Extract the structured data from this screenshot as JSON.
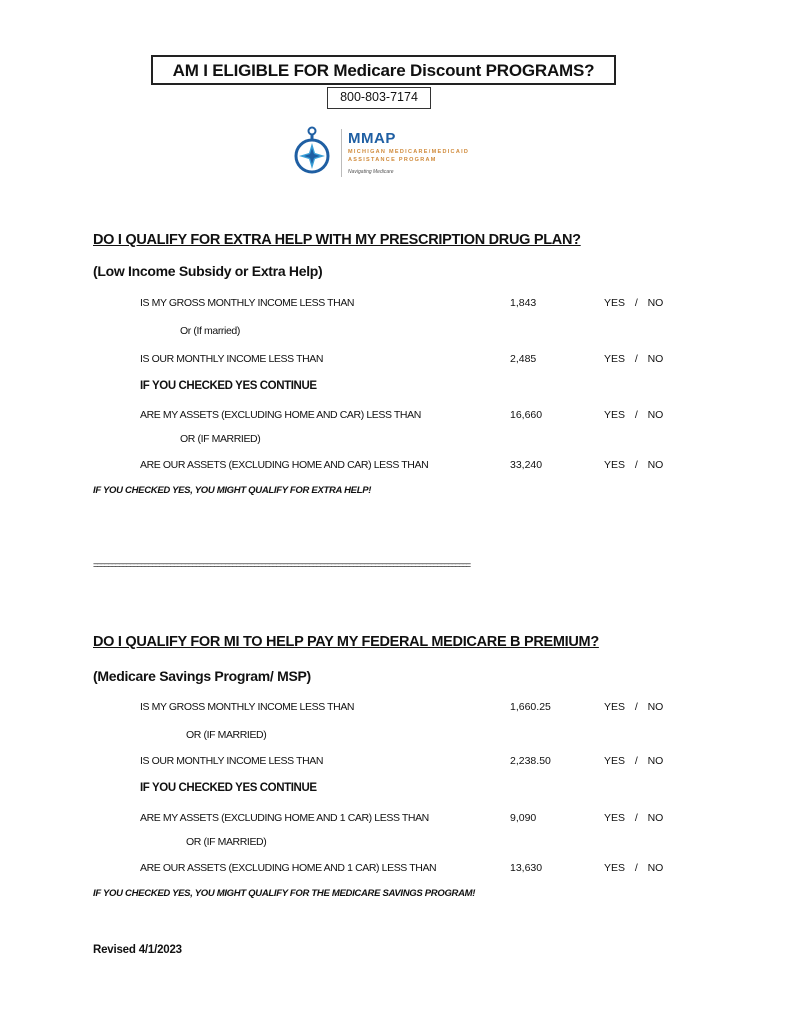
{
  "header": {
    "title": "AM I ELIGIBLE FOR Medicare Discount PROGRAMS?",
    "phone": "800-803-7174"
  },
  "logo": {
    "name": "MMAP",
    "subtitle_line1": "MICHIGAN MEDICARE/MEDICAID",
    "subtitle_line2": "ASSISTANCE PROGRAM",
    "tagline": "Navigating Medicare",
    "icon": "compass-icon",
    "colors": {
      "blue": "#1f5fa3",
      "orange": "#d08a3a",
      "light_blue": "#3aa0d8"
    }
  },
  "section1": {
    "heading": "DO I QUALIFY FOR EXTRA HELP WITH MY PRESCRIPTION DRUG PLAN?",
    "subheading": "(Low Income Subsidy or Extra Help)",
    "rows": [
      {
        "label": "IS MY GROSS MONTHLY INCOME LESS THAN",
        "value": "1,843",
        "answer": "YES  /  NO"
      },
      {
        "label": "Or (If married)"
      },
      {
        "label": "IS OUR MONTHLY INCOME LESS THAN",
        "value": "2,485",
        "answer": "YES  /  NO"
      },
      {
        "label": "IF YOU CHECKED YES CONTINUE"
      },
      {
        "label": "ARE MY ASSETS (EXCLUDING HOME AND CAR) LESS THAN",
        "value": "16,660",
        "answer": "YES  /  NO"
      },
      {
        "label": "OR (IF MARRIED)"
      },
      {
        "label": "ARE OUR ASSETS (EXCLUDING HOME AND CAR) LESS THAN",
        "value": "33,240",
        "answer": "YES  /  NO"
      }
    ],
    "closing": "IF YOU CHECKED YES, YOU MIGHT QUALIFY FOR EXTRA HELP!"
  },
  "separator": "=======================================================================================================",
  "section2": {
    "heading": "DO I QUALIFY FOR MI TO HELP PAY MY FEDERAL MEDICARE B PREMIUM?",
    "subheading": "(Medicare Savings Program/ MSP)",
    "rows": [
      {
        "label": "IS MY GROSS MONTHLY INCOME LESS THAN",
        "value": "1,660.25",
        "answer": "YES  /  NO"
      },
      {
        "label": "OR (IF MARRIED)"
      },
      {
        "label": "IS OUR MONTHLY INCOME LESS THAN",
        "value": "2,238.50",
        "answer": "YES  /  NO"
      },
      {
        "label": "IF YOU CHECKED YES CONTINUE"
      },
      {
        "label": "ARE MY ASSETS (EXCLUDING HOME AND 1 CAR) LESS THAN",
        "value": "9,090",
        "answer": "YES  /  NO"
      },
      {
        "label": "OR (IF MARRIED)"
      },
      {
        "label": "ARE OUR ASSETS (EXCLUDING HOME AND 1 CAR) LESS THAN",
        "value": "13,630",
        "answer": "YES  /  NO"
      }
    ],
    "closing": "IF YOU CHECKED YES, YOU MIGHT QUALIFY FOR THE MEDICARE SAVINGS PROGRAM!"
  },
  "footer": {
    "revised": "Revised 4/1/2023"
  }
}
